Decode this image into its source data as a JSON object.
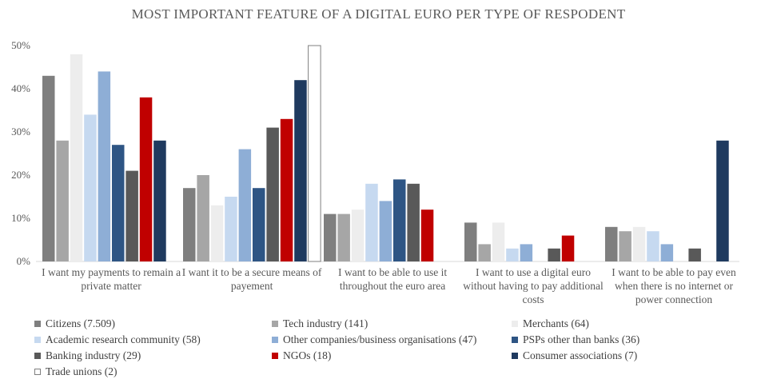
{
  "chart_data": {
    "type": "bar",
    "title": "MOST IMPORTANT FEATURE OF A DIGITAL EURO PER TYPE OF RESPODENT",
    "ylim": [
      0,
      50
    ],
    "yticks": [
      "0%",
      "10%",
      "20%",
      "30%",
      "40%",
      "50%"
    ],
    "categories": [
      [
        "I want my payments to remain a",
        "private matter"
      ],
      [
        "I want it to be a secure means of",
        "payement"
      ],
      [
        "I want to be able to use it",
        "throughout the euro area"
      ],
      [
        "I want to use a digital euro",
        "without having to pay additional",
        "costs"
      ],
      [
        "I want to be able to pay even",
        "when there is no internet or",
        "power connection"
      ]
    ],
    "series": [
      {
        "name": "Citizens (7.509)",
        "color": "#7f7f7f",
        "values": [
          43,
          17,
          11,
          9,
          8
        ]
      },
      {
        "name": "Tech industry (141)",
        "color": "#a6a6a6",
        "values": [
          28,
          20,
          11,
          4,
          7
        ]
      },
      {
        "name": "Merchants (64)",
        "color": "#ededed",
        "values": [
          48,
          13,
          12,
          9,
          8
        ]
      },
      {
        "name": "Academic research community (58)",
        "color": "#c6d9f0",
        "values": [
          34,
          15,
          18,
          3,
          7
        ]
      },
      {
        "name": "Other companies/business organisations (47)",
        "color": "#8eaed6",
        "values": [
          44,
          26,
          14,
          4,
          4
        ]
      },
      {
        "name": "PSPs other than banks (36)",
        "color": "#2e5584",
        "values": [
          27,
          17,
          19,
          0,
          0
        ]
      },
      {
        "name": "Banking industry (29)",
        "color": "#595959",
        "values": [
          21,
          31,
          18,
          3,
          3
        ]
      },
      {
        "name": "NGOs (18)",
        "color": "#c00000",
        "values": [
          38,
          33,
          12,
          6,
          0
        ]
      },
      {
        "name": "Consumer associations (7)",
        "color": "#1f3a5f",
        "values": [
          28,
          42,
          0,
          0,
          28
        ]
      },
      {
        "name": "Trade unions (2)",
        "color": "#ffffff",
        "values": [
          0,
          50,
          0,
          0,
          0
        ]
      }
    ]
  }
}
